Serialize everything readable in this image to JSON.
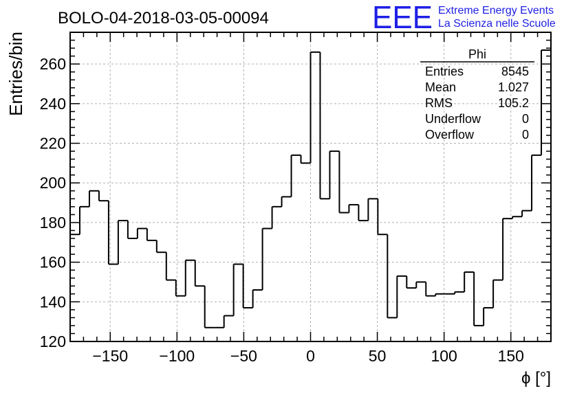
{
  "header": {
    "run_title": "BOLO-04-2018-03-05-00094",
    "logo_text": "EEE",
    "logo_line1": "Extreme Energy Events",
    "logo_line2": "La Scienza nelle Scuole"
  },
  "colors": {
    "brand": "#1f1fe6",
    "grid": "#b0b0b0",
    "line": "#000000"
  },
  "stats": {
    "title": "Phi",
    "rows": [
      {
        "label": "Entries",
        "value": "8545"
      },
      {
        "label": "Mean",
        "value": "1.027"
      },
      {
        "label": "RMS",
        "value": "105.2"
      },
      {
        "label": "Underflow",
        "value": "0"
      },
      {
        "label": "Overflow",
        "value": "0"
      }
    ]
  },
  "chart_data": {
    "type": "histogram",
    "title": "BOLO-04-2018-03-05-00094",
    "xlabel": "ϕ [°]",
    "ylabel": "Entries/bin",
    "xlim": [
      -180,
      180
    ],
    "ylim": [
      120,
      276
    ],
    "grid": true,
    "bin_width": 7.2,
    "x_ticks": [
      -150,
      -100,
      -50,
      0,
      50,
      100,
      150
    ],
    "x_tick_labels": [
      "−150",
      "−100",
      "−50",
      "0",
      "50",
      "100",
      "150"
    ],
    "y_ticks": [
      120,
      140,
      160,
      180,
      200,
      220,
      240,
      260
    ],
    "y_tick_labels": [
      "120",
      "140",
      "160",
      "180",
      "200",
      "220",
      "240",
      "260"
    ],
    "bin_edges": [
      -180,
      -172.8,
      -165.6,
      -158.4,
      -151.2,
      -144,
      -136.8,
      -129.6,
      -122.4,
      -115.2,
      -108,
      -100.8,
      -93.6,
      -86.4,
      -79.2,
      -72,
      -64.8,
      -57.6,
      -50.4,
      -43.2,
      -36,
      -28.8,
      -21.6,
      -14.4,
      -7.2,
      0,
      7.2,
      14.4,
      21.6,
      28.8,
      36,
      43.2,
      50.4,
      57.6,
      64.8,
      72,
      79.2,
      86.4,
      93.6,
      100.8,
      108,
      115.2,
      122.4,
      129.6,
      136.8,
      144,
      151.2,
      158.4,
      165.6,
      172.8,
      180
    ],
    "values": [
      174,
      188,
      196,
      191,
      159,
      181,
      172,
      177,
      171,
      165,
      151,
      143,
      161,
      148,
      127,
      127,
      133,
      159,
      137,
      146,
      177,
      188,
      193,
      214,
      210,
      266,
      192,
      216,
      185,
      189,
      181,
      192,
      174,
      132,
      153,
      147,
      150,
      143,
      144,
      144,
      145,
      155,
      128,
      137,
      151,
      182,
      183,
      186,
      214,
      267
    ]
  }
}
